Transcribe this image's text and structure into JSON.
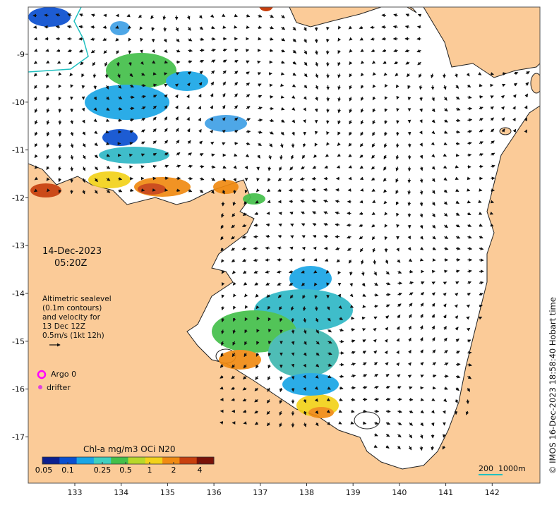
{
  "map": {
    "date": "14-Dec-2023",
    "time": "05:20Z",
    "lon_ticks": [
      "133",
      "134",
      "135",
      "136",
      "137",
      "138",
      "139",
      "140",
      "141",
      "142"
    ],
    "lat_ticks": [
      "9",
      "10",
      "11",
      "12",
      "13",
      "14",
      "15",
      "16",
      "17"
    ],
    "lat_tick_prefix": "-",
    "lon_range": [
      132,
      143
    ],
    "lat_range": [
      -8.2,
      -17.8
    ],
    "info_lines": [
      "Altimetric sealevel",
      "(0.1m contours)",
      "and velocity for",
      "13 Dec 12Z",
      "0.5m/s (1kt 12h)"
    ],
    "legend": {
      "argo_label": "Argo 0",
      "drifter_label": "drifter",
      "argo_color": "#ff00ff",
      "drifter_color": "#e040e0"
    },
    "colorbar": {
      "title": "Chl-a mg/m3 OCi N20",
      "ticks": [
        "0.05",
        "0.1",
        "0.25",
        "0.5",
        "1",
        "2",
        "4"
      ],
      "colors": [
        "#0b1f8f",
        "#0a4fd0",
        "#1aa6e6",
        "#3fd0c0",
        "#44c04a",
        "#b8d82a",
        "#f2d21a",
        "#f08a12",
        "#c8400e",
        "#7a1208"
      ]
    },
    "scale_bar": {
      "label_a": "200",
      "label_b": "1000m"
    },
    "credit": "© IMOS 16-Dec-2023 18:58:40 Hobart time",
    "land_color": "#fbcb98",
    "sea_color": "#ffffff"
  }
}
